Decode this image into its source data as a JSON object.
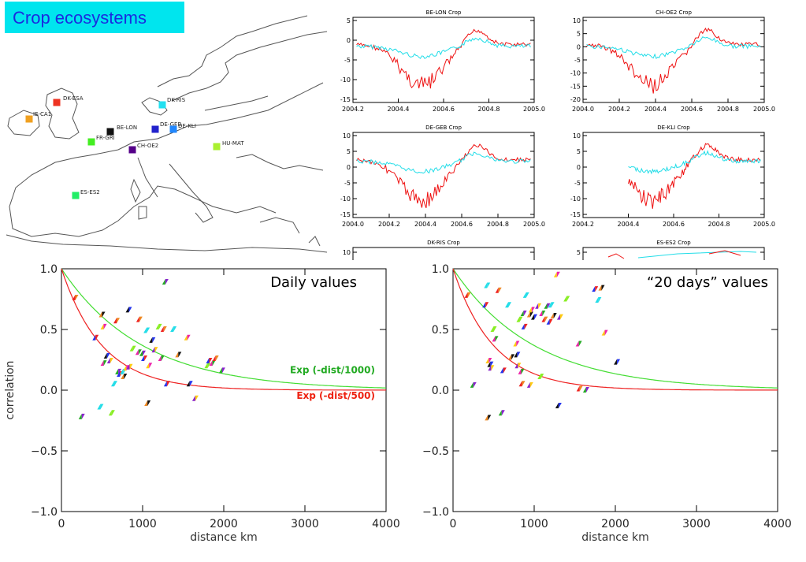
{
  "title": "Crop ecosystems",
  "colors": {
    "title_bg": "#00e5ee",
    "title_text": "#1a2be0",
    "red_fit": "#ee2222",
    "green_fit": "#22cc22",
    "obs_red": "#ee1111",
    "model_cyan": "#22dde8"
  },
  "map": {
    "sites": [
      {
        "label": "DK-ESA",
        "color": "#ee3322"
      },
      {
        "label": "IE-CA1",
        "color": "#f0a020"
      },
      {
        "label": "DK-RIS",
        "color": "#22e0f0"
      },
      {
        "label": "BE-LON",
        "color": "#111111"
      },
      {
        "label": "DE-GEB",
        "color": "#2222cc"
      },
      {
        "label": "DE-KLI",
        "color": "#2288ff"
      },
      {
        "label": "FR-GRI",
        "color": "#44ee22"
      },
      {
        "label": "CH-OE2",
        "color": "#550088"
      },
      {
        "label": "HU-MAT",
        "color": "#aaf030"
      },
      {
        "label": "ES-ES2",
        "color": "#22ee66"
      }
    ]
  },
  "timeseries": [
    {
      "title": "BE-LON Crop",
      "xticks": [
        "2004.2",
        "2004.4",
        "2004.6",
        "2004.8",
        "2005.0"
      ],
      "yticks": [
        "5",
        "0",
        "-5",
        "-10",
        "-15"
      ]
    },
    {
      "title": "CH-OE2 Crop",
      "xticks": [
        "2004.0",
        "2004.2",
        "2004.4",
        "2004.6",
        "2004.8",
        "2005.0"
      ],
      "yticks": [
        "10",
        "5",
        "0",
        "-5",
        "-10",
        "-15",
        "-20"
      ]
    },
    {
      "title": "DE-GEB Crop",
      "xticks": [
        "2004.0",
        "2004.2",
        "2004.4",
        "2004.6",
        "2004.8",
        "2005.0"
      ],
      "yticks": [
        "10",
        "5",
        "0",
        "-5",
        "-10",
        "-15"
      ]
    },
    {
      "title": "DE-KLI Crop",
      "xticks": [
        "2004.2",
        "2004.4",
        "2004.6",
        "2004.8",
        "2005.0"
      ],
      "yticks": [
        "10",
        "5",
        "0",
        "-5",
        "-10",
        "-15"
      ]
    },
    {
      "title": "DK-RIS Crop",
      "xticks": [],
      "yticks": [
        "10"
      ]
    },
    {
      "title": "ES-ES2 Crop",
      "xticks": [],
      "yticks": [
        "5"
      ]
    }
  ],
  "chart_data": [
    {
      "type": "scatter",
      "annotation": "Daily values",
      "xlabel": "distance km",
      "ylabel": "correlation",
      "xlim": [
        0,
        4000
      ],
      "ylim": [
        -1.0,
        1.0
      ],
      "xticks": [
        "0",
        "1000",
        "2000",
        "3000",
        "4000"
      ],
      "yticks": [
        "1.0",
        "0.5",
        "0.0",
        "−0.5",
        "−1.0"
      ],
      "fits": [
        {
          "name": "Exp (-dist/1000)",
          "scale": 1000,
          "color": "#22aa22"
        },
        {
          "name": "Exp (-dist/500)",
          "scale": 500,
          "color": "#ee2211"
        }
      ],
      "points": [
        [
          170,
          0.76
        ],
        [
          250,
          -0.22
        ],
        [
          420,
          0.43
        ],
        [
          480,
          -0.14
        ],
        [
          500,
          0.62
        ],
        [
          520,
          0.52
        ],
        [
          560,
          0.28
        ],
        [
          600,
          0.24
        ],
        [
          620,
          -0.19
        ],
        [
          520,
          0.22
        ],
        [
          680,
          0.57
        ],
        [
          700,
          0.15
        ],
        [
          720,
          0.13
        ],
        [
          760,
          0.15
        ],
        [
          770,
          0.11
        ],
        [
          800,
          0.18
        ],
        [
          830,
          0.66
        ],
        [
          840,
          0.19
        ],
        [
          880,
          0.34
        ],
        [
          950,
          0.31
        ],
        [
          960,
          0.58
        ],
        [
          1000,
          0.3
        ],
        [
          1020,
          0.26
        ],
        [
          1050,
          0.49
        ],
        [
          1060,
          -0.11
        ],
        [
          1080,
          0.2
        ],
        [
          1120,
          0.41
        ],
        [
          1150,
          0.33
        ],
        [
          1200,
          0.52
        ],
        [
          1230,
          0.26
        ],
        [
          1260,
          0.5
        ],
        [
          1280,
          0.89
        ],
        [
          1300,
          0.05
        ],
        [
          1380,
          0.5
        ],
        [
          1440,
          0.29
        ],
        [
          1550,
          0.43
        ],
        [
          1580,
          0.05
        ],
        [
          1650,
          -0.07
        ],
        [
          1800,
          0.2
        ],
        [
          1860,
          0.22
        ],
        [
          1900,
          0.26
        ],
        [
          1980,
          0.16
        ],
        [
          1820,
          0.24
        ],
        [
          650,
          0.05
        ]
      ]
    },
    {
      "type": "scatter",
      "annotation": "“20 days” values",
      "xlabel": "distance km",
      "ylabel": "",
      "xlim": [
        0,
        4000
      ],
      "ylim": [
        -1.0,
        1.0
      ],
      "xticks": [
        "0",
        "1000",
        "2000",
        "3000",
        "4000"
      ],
      "yticks": [
        "1.0",
        "0.5",
        "0.0",
        "−0.5",
        "−1.0"
      ],
      "fits": [
        {
          "name": "",
          "scale": 1000,
          "color": "#22cc22"
        },
        {
          "name": "",
          "scale": 500,
          "color": "#ee2211"
        }
      ],
      "points": [
        [
          180,
          0.78
        ],
        [
          250,
          0.04
        ],
        [
          400,
          0.7
        ],
        [
          420,
          0.86
        ],
        [
          430,
          -0.23
        ],
        [
          440,
          0.24
        ],
        [
          460,
          0.21
        ],
        [
          470,
          0.18
        ],
        [
          500,
          0.5
        ],
        [
          520,
          0.42
        ],
        [
          560,
          0.82
        ],
        [
          600,
          -0.19
        ],
        [
          620,
          0.16
        ],
        [
          680,
          0.7
        ],
        [
          720,
          0.27
        ],
        [
          780,
          0.38
        ],
        [
          790,
          0.29
        ],
        [
          800,
          0.2
        ],
        [
          820,
          0.58
        ],
        [
          840,
          0.15
        ],
        [
          850,
          0.05
        ],
        [
          870,
          0.63
        ],
        [
          880,
          0.52
        ],
        [
          900,
          0.78
        ],
        [
          950,
          0.62
        ],
        [
          970,
          0.66
        ],
        [
          1000,
          0.6
        ],
        [
          1050,
          0.69
        ],
        [
          1080,
          0.11
        ],
        [
          1100,
          0.63
        ],
        [
          1130,
          0.58
        ],
        [
          1160,
          0.69
        ],
        [
          1190,
          0.56
        ],
        [
          1210,
          0.7
        ],
        [
          1240,
          0.61
        ],
        [
          1280,
          0.95
        ],
        [
          1300,
          -0.13
        ],
        [
          1320,
          0.6
        ],
        [
          1400,
          0.75
        ],
        [
          1550,
          0.38
        ],
        [
          1560,
          0.01
        ],
        [
          1640,
          0.0
        ],
        [
          1750,
          0.83
        ],
        [
          1790,
          0.74
        ],
        [
          1830,
          0.84
        ],
        [
          1870,
          0.47
        ],
        [
          2020,
          0.23
        ],
        [
          950,
          0.04
        ]
      ]
    }
  ]
}
